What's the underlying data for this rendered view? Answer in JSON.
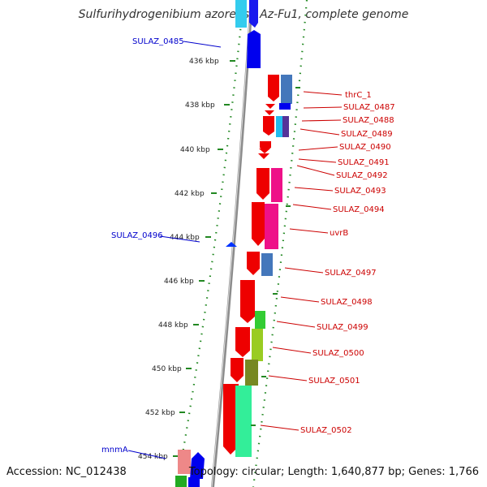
{
  "title": "Sulfurihydrogenibium azorense Az-Fu1, complete genome",
  "footer": {
    "accession": "Accession: NC_012438",
    "topology": "Topology: circular; Length: 1,640,877 bp; Genes: 1,766"
  },
  "colors": {
    "backbone": "#8c8c8c",
    "forward_label": "#0000cc",
    "reverse_label": "#cc0000",
    "ruler_dots": "#228822"
  },
  "ruler": [
    "436 kbp",
    "438 kbp",
    "440 kbp",
    "442 kbp",
    "444 kbp",
    "446 kbp",
    "448 kbp",
    "450 kbp",
    "452 kbp",
    "454 kbp"
  ],
  "labels": {
    "forward": [
      "SULAZ_0485",
      "SULAZ_0496",
      "mnmA"
    ],
    "reverse": [
      "thrC_1",
      "SULAZ_0487",
      "SULAZ_0488",
      "SULAZ_0489",
      "SULAZ_0490",
      "SULAZ_0491",
      "SULAZ_0492",
      "SULAZ_0493",
      "SULAZ_0494",
      "uvrB",
      "SULAZ_0497",
      "SULAZ_0498",
      "SULAZ_0499",
      "SULAZ_0500",
      "SULAZ_0501",
      "SULAZ_0502"
    ]
  }
}
